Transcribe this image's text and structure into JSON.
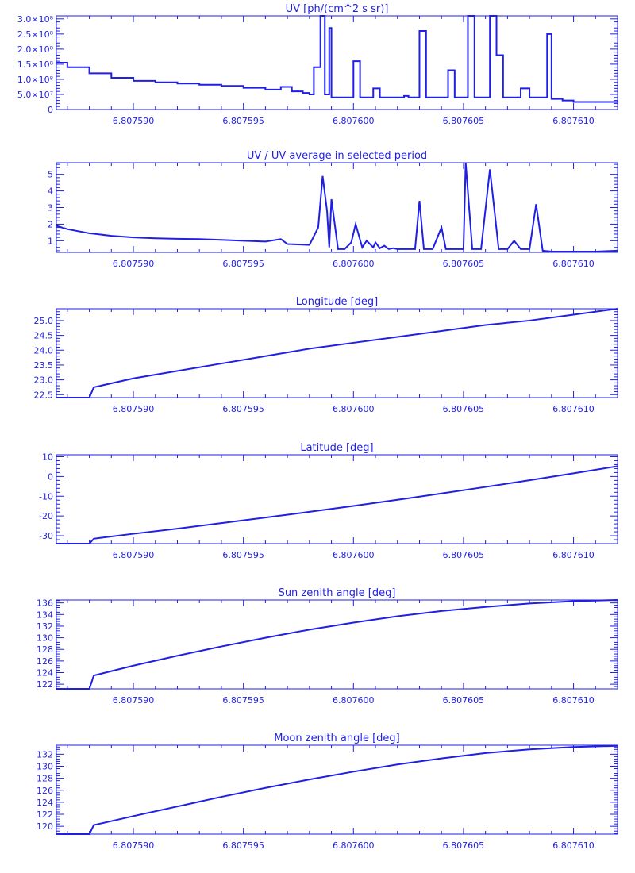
{
  "figure": {
    "color": "#1f1fe6"
  },
  "chart_data": [
    {
      "type": "line",
      "title": "UV [ph/(cm^2 s sr)]",
      "ylabel": "",
      "xlabel": "",
      "xlim": [
        6.8075865,
        6.807612
      ],
      "ylim": [
        0,
        310000000.0
      ],
      "xticks": [
        6.80759,
        6.807595,
        6.8076,
        6.807605,
        6.80761
      ],
      "xtick_labels": [
        "6.807590",
        "6.807595",
        "6.807600",
        "6.807605",
        "6.807610"
      ],
      "yticks": [
        0,
        50000000.0,
        100000000.0,
        150000000.0,
        200000000.0,
        250000000.0,
        300000000.0
      ],
      "ytick_labels": [
        "0",
        "5.0×10⁷",
        "1.0×10⁸",
        "1.5×10⁸",
        "2.0×10⁸",
        "2.5×10⁸",
        "3.0×10⁸"
      ],
      "grid": false,
      "series": [
        {
          "x": [
            6.8075865,
            6.807587,
            6.807588,
            6.807589,
            6.80759,
            6.807591,
            6.807592,
            6.807593,
            6.807594,
            6.807595,
            6.807596,
            6.8075967,
            6.8075972,
            6.8075977,
            6.807598,
            6.8075982,
            6.8075985,
            6.8075987,
            6.8075989,
            6.807599,
            6.8075993,
            6.8075996,
            6.8076,
            6.8076003,
            6.8076006,
            6.8076009,
            6.8076012,
            6.8076015,
            6.8076018,
            6.807602,
            6.8076023,
            6.8076025,
            6.8076027,
            6.807603,
            6.8076033,
            6.8076037,
            6.807604,
            6.8076043,
            6.8076046,
            6.807605,
            6.8076052,
            6.8076055,
            6.807606,
            6.8076062,
            6.8076065,
            6.8076068,
            6.807607,
            6.8076073,
            6.8076076,
            6.807608,
            6.8076082,
            6.8076085,
            6.8076088,
            6.807609,
            6.8076095,
            6.80761,
            6.8076105,
            6.807611,
            6.807612
          ],
          "y": [
            155000000.0,
            140000000.0,
            120000000.0,
            105000000.0,
            95000000.0,
            90000000.0,
            86000000.0,
            82000000.0,
            78000000.0,
            72000000.0,
            66000000.0,
            75000000.0,
            60000000.0,
            55000000.0,
            50000000.0,
            140000000.0,
            310000000.0,
            50000000.0,
            270000000.0,
            40000000.0,
            40000000.0,
            40000000.0,
            160000000.0,
            40000000.0,
            40000000.0,
            70000000.0,
            40000000.0,
            40000000.0,
            40000000.0,
            40000000.0,
            45000000.0,
            40000000.0,
            40000000.0,
            260000000.0,
            40000000.0,
            40000000.0,
            40000000.0,
            130000000.0,
            40000000.0,
            40000000.0,
            310000000.0,
            40000000.0,
            40000000.0,
            310000000.0,
            180000000.0,
            40000000.0,
            40000000.0,
            40000000.0,
            70000000.0,
            40000000.0,
            40000000.0,
            40000000.0,
            250000000.0,
            35000000.0,
            30000000.0,
            25000000.0,
            25000000.0,
            25000000.0,
            28000000.0
          ]
        }
      ]
    },
    {
      "type": "line",
      "title": "UV / UV average in selected period",
      "ylabel": "",
      "xlabel": "",
      "xlim": [
        6.8075865,
        6.807612
      ],
      "ylim": [
        0.3,
        5.7
      ],
      "xticks": [
        6.80759,
        6.807595,
        6.8076,
        6.807605,
        6.80761
      ],
      "xtick_labels": [
        "6.807590",
        "6.807595",
        "6.807600",
        "6.807605",
        "6.807610"
      ],
      "yticks": [
        1,
        2,
        3,
        4,
        5
      ],
      "ytick_labels": [
        "1",
        "2",
        "3",
        "4",
        "5"
      ],
      "grid": false,
      "series": [
        {
          "x": [
            6.8075865,
            6.807587,
            6.807588,
            6.807589,
            6.80759,
            6.807591,
            6.807592,
            6.807593,
            6.807594,
            6.807595,
            6.807596,
            6.8075967,
            6.807597,
            6.807598,
            6.8075984,
            6.8075986,
            6.8075988,
            6.8075989,
            6.807599,
            6.8075993,
            6.8075996,
            6.8075999,
            6.8076001,
            6.8076004,
            6.8076006,
            6.8076009,
            6.807601,
            6.8076012,
            6.8076014,
            6.8076016,
            6.8076018,
            6.807602,
            6.8076023,
            6.8076028,
            6.807603,
            6.8076032,
            6.8076036,
            6.807604,
            6.8076042,
            6.8076045,
            6.807605,
            6.8076051,
            6.8076054,
            6.8076058,
            6.8076062,
            6.8076066,
            6.807607,
            6.8076073,
            6.8076076,
            6.807608,
            6.8076083,
            6.8076086,
            6.807609,
            6.8076095,
            6.80761,
            6.8076105,
            6.807611,
            6.807612
          ],
          "y": [
            1.9,
            1.7,
            1.45,
            1.3,
            1.2,
            1.15,
            1.12,
            1.1,
            1.05,
            1.0,
            0.95,
            1.1,
            0.8,
            0.75,
            1.8,
            4.9,
            2.8,
            0.6,
            3.5,
            0.5,
            0.5,
            0.9,
            2.0,
            0.6,
            1.0,
            0.6,
            0.9,
            0.55,
            0.7,
            0.5,
            0.55,
            0.5,
            0.5,
            0.5,
            3.4,
            0.5,
            0.5,
            1.8,
            0.5,
            0.5,
            0.5,
            5.7,
            0.5,
            0.5,
            5.3,
            0.5,
            0.5,
            1.0,
            0.5,
            0.5,
            3.2,
            0.4,
            0.35,
            0.35,
            0.35,
            0.35,
            0.35,
            0.4
          ]
        }
      ]
    },
    {
      "type": "line",
      "title": "Longitude [deg]",
      "ylabel": "",
      "xlabel": "",
      "xlim": [
        6.8075865,
        6.807612
      ],
      "ylim": [
        22.4,
        25.4
      ],
      "xticks": [
        6.80759,
        6.807595,
        6.8076,
        6.807605,
        6.80761
      ],
      "xtick_labels": [
        "6.807590",
        "6.807595",
        "6.807600",
        "6.807605",
        "6.807610"
      ],
      "yticks": [
        22.5,
        23.0,
        23.5,
        24.0,
        24.5,
        25.0
      ],
      "ytick_labels": [
        "22.5",
        "23.0",
        "23.5",
        "24.0",
        "24.5",
        "25.0"
      ],
      "grid": false,
      "series": [
        {
          "x": [
            6.8075865,
            6.807588,
            6.8075882,
            6.80759,
            6.807592,
            6.807594,
            6.807596,
            6.807598,
            6.8076,
            6.807602,
            6.807604,
            6.807606,
            6.807608,
            6.80761,
            6.807612
          ],
          "y": [
            22.4,
            22.4,
            22.75,
            23.05,
            23.3,
            23.55,
            23.8,
            24.05,
            24.25,
            24.45,
            24.65,
            24.85,
            25.0,
            25.2,
            25.4
          ]
        }
      ]
    },
    {
      "type": "line",
      "title": "Latitude [deg]",
      "ylabel": "",
      "xlabel": "",
      "xlim": [
        6.8075865,
        6.807612
      ],
      "ylim": [
        -34,
        11
      ],
      "xticks": [
        6.80759,
        6.807595,
        6.8076,
        6.807605,
        6.80761
      ],
      "xtick_labels": [
        "6.807590",
        "6.807595",
        "6.807600",
        "6.807605",
        "6.807610"
      ],
      "yticks": [
        -30,
        -20,
        -10,
        0,
        10
      ],
      "ytick_labels": [
        "-30",
        "-20",
        "-10",
        "0",
        "10"
      ],
      "grid": false,
      "series": [
        {
          "x": [
            6.8075865,
            6.807588,
            6.8075882,
            6.80759,
            6.807592,
            6.807594,
            6.807596,
            6.807598,
            6.8076,
            6.807602,
            6.807604,
            6.807606,
            6.807608,
            6.80761,
            6.807612
          ],
          "y": [
            -34,
            -34,
            -31.5,
            -29.0,
            -26.4,
            -23.6,
            -20.8,
            -17.9,
            -14.9,
            -11.8,
            -8.6,
            -5.3,
            -1.9,
            1.6,
            5.2
          ]
        }
      ]
    },
    {
      "type": "line",
      "title": "Sun zenith angle [deg]",
      "ylabel": "",
      "xlabel": "",
      "xlim": [
        6.8075865,
        6.807612
      ],
      "ylim": [
        121.2,
        136.5
      ],
      "xticks": [
        6.80759,
        6.807595,
        6.8076,
        6.807605,
        6.80761
      ],
      "xtick_labels": [
        "6.807590",
        "6.807595",
        "6.807600",
        "6.807605",
        "6.807610"
      ],
      "yticks": [
        122,
        124,
        126,
        128,
        130,
        132,
        134,
        136
      ],
      "ytick_labels": [
        "122",
        "124",
        "126",
        "128",
        "130",
        "132",
        "134",
        "136"
      ],
      "grid": false,
      "series": [
        {
          "x": [
            6.8075865,
            6.807588,
            6.8075882,
            6.80759,
            6.807592,
            6.807594,
            6.807596,
            6.807598,
            6.8076,
            6.807602,
            6.807604,
            6.807606,
            6.807608,
            6.80761,
            6.807612
          ],
          "y": [
            121.2,
            121.2,
            123.5,
            125.2,
            126.9,
            128.5,
            130.0,
            131.4,
            132.6,
            133.7,
            134.6,
            135.3,
            135.9,
            136.3,
            136.5
          ]
        }
      ]
    },
    {
      "type": "line",
      "title": "Moon zenith angle [deg]",
      "ylabel": "",
      "xlabel": "",
      "xlim": [
        6.8075865,
        6.807612
      ],
      "ylim": [
        118.7,
        133.5
      ],
      "xticks": [
        6.80759,
        6.807595,
        6.8076,
        6.807605,
        6.80761
      ],
      "xtick_labels": [
        "6.807590",
        "6.807595",
        "6.807600",
        "6.807605",
        "6.807610"
      ],
      "yticks": [
        120,
        122,
        124,
        126,
        128,
        130,
        132
      ],
      "ytick_labels": [
        "120",
        "122",
        "124",
        "126",
        "128",
        "130",
        "132"
      ],
      "grid": false,
      "series": [
        {
          "x": [
            6.8075865,
            6.807588,
            6.8075882,
            6.80759,
            6.807592,
            6.807594,
            6.807596,
            6.807598,
            6.8076,
            6.807602,
            6.807604,
            6.807606,
            6.807608,
            6.80761,
            6.807612
          ],
          "y": [
            118.7,
            118.7,
            120.2,
            121.7,
            123.3,
            124.9,
            126.4,
            127.8,
            129.1,
            130.3,
            131.3,
            132.2,
            132.8,
            133.2,
            133.4
          ]
        }
      ]
    }
  ]
}
